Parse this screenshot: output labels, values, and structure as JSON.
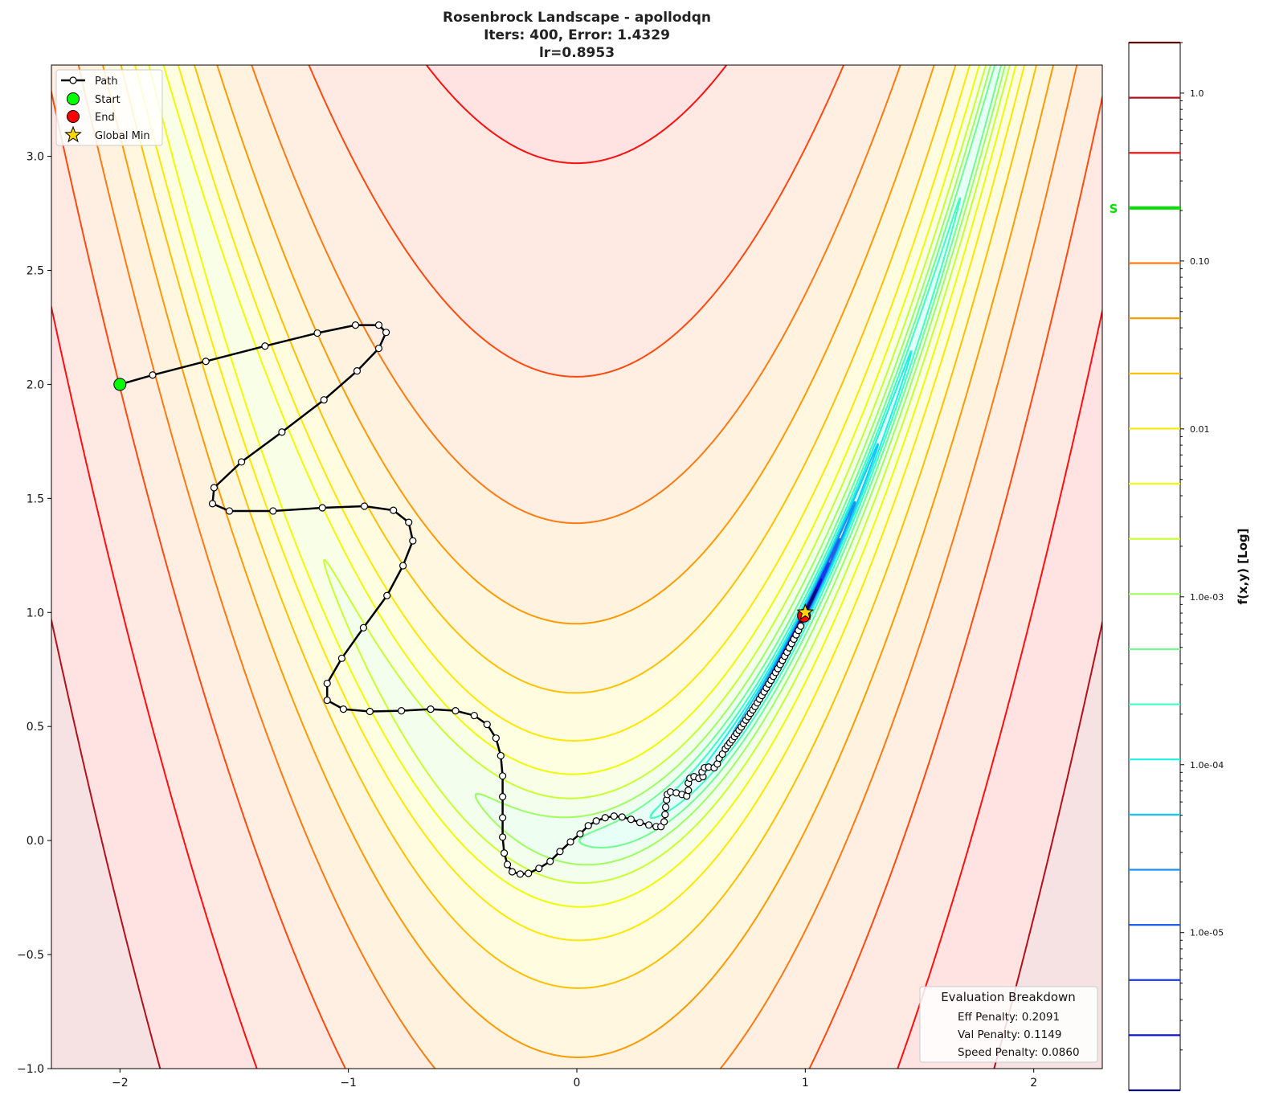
{
  "chart_data": {
    "type": "line",
    "title": [
      "Rosenbrock Landscape - apollodqn",
      "Iters: 400, Error: 1.4329",
      "lr=0.8953"
    ],
    "xlim": [
      -2.3,
      2.3
    ],
    "ylim": [
      -1.0,
      3.4
    ],
    "xticks": [
      -2,
      -1,
      0,
      1,
      2
    ],
    "xtick_labels": [
      "−2",
      "−1",
      "0",
      "1",
      "2"
    ],
    "yticks": [
      -1.0,
      -0.5,
      0.0,
      0.5,
      1.0,
      1.5,
      2.0,
      2.5,
      3.0
    ],
    "ytick_labels": [
      "−1.0",
      "−0.5",
      "0.0",
      "0.5",
      "1.0",
      "1.5",
      "2.0",
      "2.5",
      "3.0"
    ],
    "grid": false,
    "contour": {
      "function": "rosenbrock (1-x)^2 + 100(y-x^2)^2",
      "levels_top": 4006,
      "level_ratio": 2.13,
      "level_count": 20,
      "colors": [
        "#5a0808",
        "#b2101a",
        "#ff1010",
        "#ff4a10",
        "#ff7a10",
        "#ff9a00",
        "#ffc000",
        "#ffe800",
        "#eeff00",
        "#c8ff30",
        "#a0ff60",
        "#70ff90",
        "#40ffc0",
        "#20f0e0",
        "#10c8f8",
        "#1890f0",
        "#2060e8",
        "#1838f0",
        "#1010d0",
        "#0a0a70"
      ]
    },
    "path": {
      "name": "Path",
      "x": [
        -2.0,
        -1.857,
        -1.624,
        -1.365,
        -1.136,
        -0.969,
        -0.867,
        -0.835,
        -0.867,
        -0.962,
        -1.107,
        -1.291,
        -1.468,
        -1.588,
        -1.595,
        -1.521,
        -1.33,
        -1.114,
        -0.93,
        -0.803,
        -0.736,
        -0.718,
        -0.761,
        -0.831,
        -0.934,
        -1.029,
        -1.093,
        -1.093,
        -1.022,
        -0.906,
        -0.768,
        -0.64,
        -0.531,
        -0.449,
        -0.393,
        -0.354,
        -0.333,
        -0.325,
        -0.325,
        -0.325,
        -0.325,
        -0.318,
        -0.304,
        -0.283,
        -0.248,
        -0.212,
        -0.166,
        -0.117,
        -0.074,
        -0.028,
        0.014,
        0.05,
        0.085,
        0.124,
        0.163,
        0.198,
        0.237,
        0.276,
        0.315,
        0.347,
        0.368,
        0.382,
        0.386,
        0.389,
        0.393,
        0.396,
        0.41,
        0.435,
        0.46,
        0.481,
        0.488,
        0.488,
        0.495,
        0.513,
        0.534,
        0.552,
        0.548,
        0.559,
        0.577,
        0.601,
        0.615,
        0.623,
        0.637,
        0.65,
        0.66,
        0.67,
        0.68,
        0.69,
        0.7,
        0.71,
        0.72,
        0.73,
        0.74,
        0.75,
        0.76,
        0.77,
        0.78,
        0.79,
        0.8,
        0.81,
        0.82,
        0.83,
        0.84,
        0.85,
        0.86,
        0.87,
        0.88,
        0.89,
        0.9,
        0.91,
        0.92,
        0.93,
        0.94,
        0.95,
        0.96,
        0.97,
        0.98,
        0.994
      ],
      "y": [
        2.0,
        2.041,
        2.101,
        2.168,
        2.225,
        2.26,
        2.26,
        2.228,
        2.158,
        2.059,
        1.932,
        1.791,
        1.66,
        1.547,
        1.477,
        1.445,
        1.445,
        1.459,
        1.466,
        1.448,
        1.395,
        1.314,
        1.205,
        1.074,
        0.933,
        0.799,
        0.689,
        0.615,
        0.576,
        0.566,
        0.569,
        0.576,
        0.569,
        0.548,
        0.509,
        0.449,
        0.372,
        0.283,
        0.192,
        0.1,
        0.015,
        -0.055,
        -0.105,
        -0.137,
        -0.147,
        -0.144,
        -0.122,
        -0.091,
        -0.048,
        -0.006,
        0.029,
        0.065,
        0.086,
        0.1,
        0.107,
        0.103,
        0.093,
        0.079,
        0.068,
        0.061,
        0.061,
        0.082,
        0.114,
        0.146,
        0.178,
        0.202,
        0.213,
        0.209,
        0.202,
        0.195,
        0.22,
        0.252,
        0.273,
        0.28,
        0.273,
        0.28,
        0.301,
        0.319,
        0.322,
        0.319,
        0.336,
        0.361,
        0.379,
        0.402,
        0.416,
        0.429,
        0.442,
        0.456,
        0.47,
        0.484,
        0.498,
        0.513,
        0.528,
        0.543,
        0.558,
        0.573,
        0.588,
        0.604,
        0.62,
        0.636,
        0.652,
        0.669,
        0.686,
        0.703,
        0.72,
        0.737,
        0.754,
        0.772,
        0.79,
        0.808,
        0.826,
        0.845,
        0.864,
        0.883,
        0.902,
        0.921,
        0.94,
        0.986
      ],
      "color": "#000000"
    },
    "start": {
      "name": "Start",
      "x": -2.0,
      "y": 2.0,
      "color": "#00ff00"
    },
    "end": {
      "name": "End",
      "x": 0.994,
      "y": 0.986,
      "color": "#ff0000"
    },
    "global_min": {
      "name": "Global Min",
      "x": 1.0,
      "y": 1.0,
      "color": "#ffd700"
    },
    "legend_placement": "top-left",
    "colorbar": {
      "label": "f(x,y) [Log]",
      "scale": "log",
      "range": [
        1.15e-06,
        2.0
      ],
      "ticks": [
        1.0,
        0.1,
        0.01,
        0.001,
        0.0001,
        1e-05
      ],
      "tick_labels": [
        "1.0",
        "0.10",
        "0.01",
        "1.0e-03",
        "1.0e-04",
        "1.0e-05"
      ],
      "marker_label": "S",
      "marker_level_index": 3,
      "marker_color": "#00e000"
    },
    "evaluation_box": {
      "title": "Evaluation Breakdown",
      "lines": [
        "Eff Penalty: 0.2091",
        "Val Penalty: 0.1149",
        "Speed Penalty: 0.0860"
      ]
    }
  }
}
